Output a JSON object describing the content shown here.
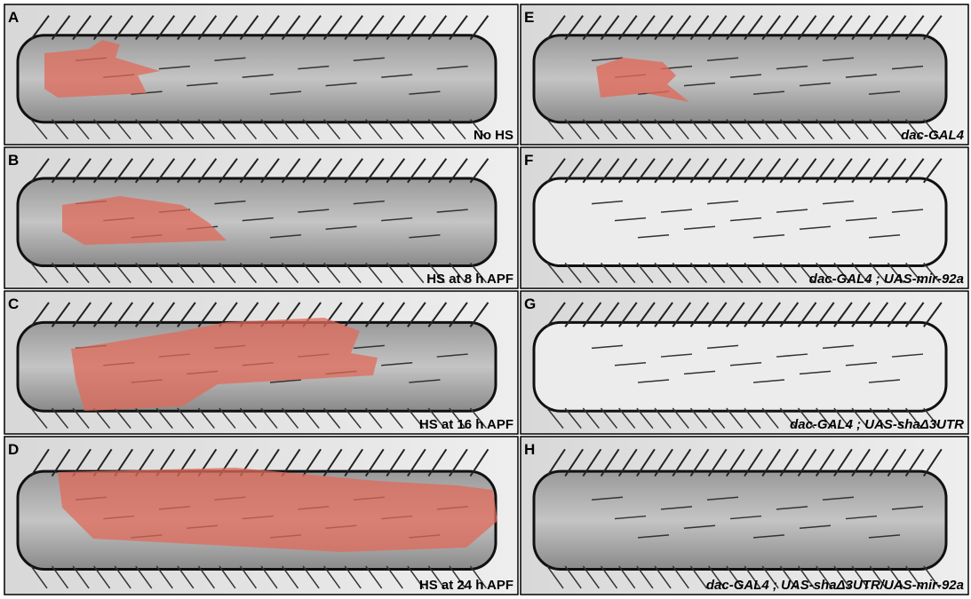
{
  "panels": [
    {
      "letter": "A",
      "caption": "No HS"
    },
    {
      "letter": "B",
      "caption": "HS at 8 h APF"
    },
    {
      "letter": "C",
      "caption": "HS at 16 h APF"
    },
    {
      "letter": "D",
      "caption": "HS at 24 h APF"
    },
    {
      "letter": "E",
      "caption": "dac-GAL4"
    },
    {
      "letter": "F",
      "caption": "dac-GAL4 ; UAS-mir-92a"
    },
    {
      "letter": "G",
      "caption": "dac-GAL4 ; UAS-shaΔ3UTR"
    },
    {
      "letter": "H",
      "caption": "dac-GAL4 ; UAS-shaΔ3UTR/UAS-mir-92a"
    }
  ]
}
